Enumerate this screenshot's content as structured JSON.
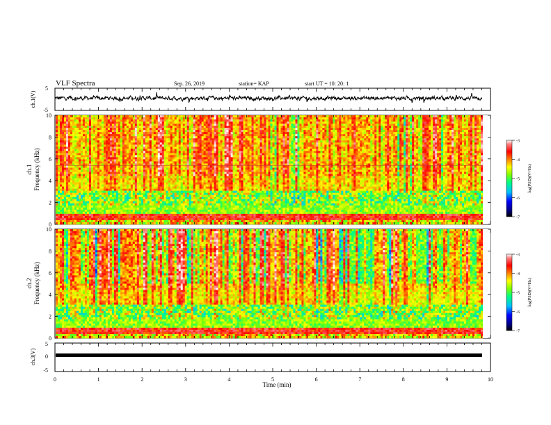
{
  "header": {
    "title": "VLF Spectra",
    "date": "Sep. 26, 2019",
    "station": "station= KAP",
    "start": "start  UT  =   10: 20: 1"
  },
  "colors": {
    "waveform": "#000000",
    "colormap": [
      "#000000",
      "#000080",
      "#0000ff",
      "#00bfff",
      "#00ff80",
      "#80ff00",
      "#ffff00",
      "#ff8000",
      "#ff0000",
      "#ff8080",
      "#ffffff"
    ]
  },
  "chart_data": [
    {
      "type": "line",
      "panel": "ch1-waveform",
      "ylabel": "ch.1(V)",
      "ylim": [
        -5,
        5
      ],
      "yticks": [
        "5",
        "-5"
      ],
      "xlim": [
        0,
        10
      ],
      "series": [
        {
          "description": "noisy waveform fluctuating around about 0.5 V, ranging roughly -2 to +3 V over 0 to 9.8 min"
        }
      ]
    },
    {
      "type": "heatmap",
      "panel": "ch1-spectrogram",
      "ylabel": "ch.1\nFrequency (kHz)",
      "ylim": [
        0,
        10
      ],
      "yticks": [
        "0",
        "2",
        "4",
        "6",
        "8",
        "10"
      ],
      "xlim": [
        0,
        10
      ],
      "colorbar": {
        "label": "log(PSD)(V²/Hz)",
        "range": [
          -7,
          -3
        ],
        "ticks": [
          "-3",
          "-4",
          "-5",
          "-6",
          "-7"
        ]
      }
    },
    {
      "type": "heatmap",
      "panel": "ch2-spectrogram",
      "ylabel": "ch.2\nFrequency (kHz)",
      "ylim": [
        0,
        10
      ],
      "yticks": [
        "0",
        "2",
        "4",
        "6",
        "8",
        "10"
      ],
      "xlim": [
        0,
        10
      ],
      "colorbar": {
        "label": "log(PSD)(V²/Hz)",
        "range": [
          -7,
          -3
        ],
        "ticks": [
          "-3",
          "-4",
          "-5",
          "-6",
          "-7"
        ]
      }
    },
    {
      "type": "line",
      "panel": "ch3-waveform",
      "ylabel": "ch.3(V)",
      "ylim": [
        -5,
        5
      ],
      "yticks": [
        "5",
        "0",
        "-5"
      ],
      "xlim": [
        0,
        10
      ],
      "series": [
        {
          "description": "nearly flat thick line at about 0 V"
        }
      ]
    }
  ],
  "xaxis": {
    "label": "Time (min)",
    "ticks": [
      "0",
      "1",
      "2",
      "3",
      "4",
      "5",
      "6",
      "7",
      "8",
      "9",
      "10"
    ]
  }
}
